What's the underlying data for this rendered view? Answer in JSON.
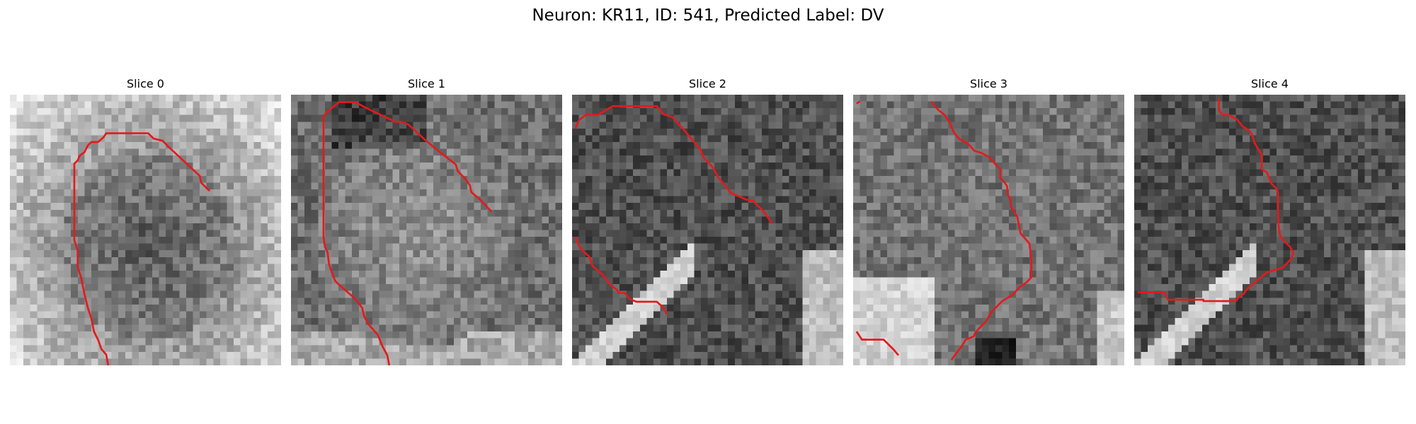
{
  "figure": {
    "title": "Neuron: KR11, ID: 541, Predicted Label: DV"
  },
  "panels": [
    {
      "title": "Slice 0",
      "background": "bright",
      "contours": [
        [
          [
            14.5,
            40
          ],
          [
            14.2,
            38.4
          ],
          [
            13.5,
            37.6
          ],
          [
            13,
            36.2
          ],
          [
            12.4,
            35
          ],
          [
            12,
            33
          ],
          [
            11.5,
            31.5
          ],
          [
            11,
            29.5
          ],
          [
            10.5,
            27
          ],
          [
            10,
            25.5
          ],
          [
            10,
            23
          ],
          [
            9.5,
            21.5
          ],
          [
            9.5,
            10.2
          ],
          [
            10,
            9.7
          ],
          [
            10.3,
            9
          ],
          [
            11,
            8.5
          ],
          [
            11.5,
            7.5
          ],
          [
            12,
            7
          ],
          [
            13,
            7
          ],
          [
            13.8,
            6.3
          ],
          [
            14.2,
            5.7
          ],
          [
            20.4,
            5.7
          ],
          [
            21.2,
            6.5
          ],
          [
            22.5,
            6.8
          ],
          [
            23.5,
            7.8
          ],
          [
            28,
            12
          ],
          [
            28.2,
            13
          ],
          [
            29.2,
            14
          ],
          [
            29.5,
            14.2
          ]
        ]
      ]
    },
    {
      "title": "Slice 1",
      "background": "mid",
      "contours": [
        [
          [
            14.5,
            40
          ],
          [
            14.2,
            38.5
          ],
          [
            13.5,
            37.2
          ],
          [
            12.8,
            35.5
          ],
          [
            11.5,
            34
          ],
          [
            10.8,
            32.8
          ],
          [
            10.5,
            31.5
          ],
          [
            9.5,
            30.2
          ],
          [
            7,
            28
          ],
          [
            6.5,
            27.5
          ],
          [
            6,
            26.2
          ],
          [
            5.6,
            25
          ],
          [
            5.4,
            23.3
          ],
          [
            5,
            22.5
          ],
          [
            4.8,
            21
          ],
          [
            4.8,
            3.2
          ],
          [
            5.2,
            2.7
          ],
          [
            6.2,
            1.8
          ],
          [
            7.1,
            1.1
          ],
          [
            9.5,
            1.1
          ],
          [
            10.6,
            1.7
          ],
          [
            11.8,
            2.3
          ],
          [
            13.9,
            3.3
          ],
          [
            15,
            3.8
          ],
          [
            15.2,
            4
          ],
          [
            16.2,
            4
          ],
          [
            17.3,
            4.4
          ],
          [
            18.3,
            5.3
          ],
          [
            19.8,
            6.7
          ],
          [
            21.6,
            8.2
          ],
          [
            24.3,
            10.3
          ],
          [
            24.6,
            11.3
          ],
          [
            25.6,
            12.3
          ],
          [
            26.4,
            13.4
          ],
          [
            26.6,
            14.4
          ],
          [
            27.8,
            15.4
          ],
          [
            29.6,
            17.3
          ]
        ]
      ]
    },
    {
      "title": "Slice 2",
      "background": "dark",
      "contours": [
        [
          [
            0.5,
            5
          ],
          [
            1,
            3.8
          ],
          [
            2,
            3
          ],
          [
            3.8,
            3
          ],
          [
            4.8,
            2.4
          ],
          [
            6,
            1.7
          ],
          [
            12.5,
            1.7
          ],
          [
            13.5,
            2.9
          ],
          [
            14.8,
            3.3
          ],
          [
            16.5,
            5.2
          ],
          [
            19,
            8.2
          ],
          [
            19.4,
            9.3
          ],
          [
            20.8,
            10.8
          ],
          [
            21.6,
            12.3
          ],
          [
            22.4,
            13.2
          ],
          [
            23.4,
            14.5
          ],
          [
            25.7,
            15.5
          ],
          [
            26.7,
            15.7
          ],
          [
            28.2,
            17.2
          ],
          [
            29.5,
            19
          ]
        ],
        [
          [
            0.5,
            21
          ],
          [
            1,
            22.3
          ],
          [
            1.5,
            23
          ],
          [
            2.6,
            24
          ],
          [
            3,
            25.3
          ],
          [
            4.5,
            26.6
          ],
          [
            5.6,
            28
          ],
          [
            6.8,
            29
          ],
          [
            6.8,
            29.3
          ],
          [
            7.8,
            29.3
          ],
          [
            8.5,
            30.2
          ],
          [
            9.5,
            30.6
          ],
          [
            12.5,
            30.6
          ],
          [
            13.5,
            31.5
          ],
          [
            14,
            32.5
          ]
        ]
      ]
    },
    {
      "title": "Slice 3",
      "background": "mid-dark",
      "contours": [
        [
          [
            0.5,
            1.3
          ],
          [
            1,
            1
          ]
        ],
        [
          [
            11.5,
            1
          ],
          [
            12.5,
            2.2
          ],
          [
            13.5,
            3
          ],
          [
            14.3,
            4.2
          ],
          [
            14.8,
            5.5
          ],
          [
            15.6,
            6.5
          ],
          [
            16.9,
            7.2
          ],
          [
            17.9,
            8.3
          ],
          [
            18.9,
            8.6
          ],
          [
            20,
            9.2
          ],
          [
            21.2,
            10.5
          ],
          [
            21.7,
            11
          ],
          [
            21.7,
            12.3
          ],
          [
            22.2,
            12.8
          ],
          [
            22.7,
            13.5
          ],
          [
            22.8,
            14.7
          ],
          [
            23.2,
            15.6
          ],
          [
            23.3,
            16.6
          ],
          [
            24.2,
            18
          ],
          [
            24.4,
            19
          ],
          [
            24.7,
            20.5
          ],
          [
            26,
            22
          ],
          [
            26.2,
            23.5
          ],
          [
            26.3,
            25.3
          ],
          [
            26.3,
            27
          ],
          [
            25.5,
            27.8
          ],
          [
            24.5,
            28.5
          ],
          [
            23.5,
            29.6
          ],
          [
            22,
            30.5
          ],
          [
            20.4,
            32.1
          ],
          [
            19.6,
            33.5
          ],
          [
            18.8,
            34.3
          ],
          [
            18,
            35.2
          ],
          [
            17.8,
            35.7
          ],
          [
            16.6,
            36.2
          ],
          [
            16,
            37.2
          ],
          [
            15,
            38.5
          ],
          [
            14.5,
            39.2
          ]
        ],
        [
          [
            0.5,
            35
          ],
          [
            1.3,
            36.2
          ],
          [
            4.5,
            36.2
          ],
          [
            5.5,
            37.2
          ],
          [
            6,
            37.7
          ],
          [
            6.5,
            38.3
          ],
          [
            6.7,
            38.5
          ]
        ]
      ]
    },
    {
      "title": "Slice 4",
      "background": "dark",
      "contours": [
        [
          [
            12.5,
            0.5
          ],
          [
            12.5,
            2.3
          ],
          [
            13,
            3
          ],
          [
            14,
            3
          ],
          [
            15.2,
            3.7
          ],
          [
            16,
            4.7
          ],
          [
            17,
            5.3
          ],
          [
            17.5,
            6.2
          ],
          [
            17.8,
            7.2
          ],
          [
            18.3,
            8.1
          ],
          [
            18.8,
            8.8
          ],
          [
            18.8,
            11
          ],
          [
            19.6,
            11.5
          ],
          [
            20.2,
            13.1
          ],
          [
            21,
            13.9
          ],
          [
            21.2,
            14.5
          ],
          [
            21.2,
            17
          ],
          [
            21.3,
            19.4
          ],
          [
            21.5,
            20.8
          ],
          [
            22.2,
            21.7
          ],
          [
            23,
            22.5
          ],
          [
            23.5,
            23.4
          ],
          [
            23.2,
            24.2
          ],
          [
            22,
            25.5
          ],
          [
            20.5,
            26
          ],
          [
            19.5,
            26.3
          ],
          [
            17,
            28.4
          ],
          [
            16.4,
            29
          ],
          [
            16.2,
            29.4
          ],
          [
            15.5,
            29.8
          ],
          [
            15,
            30.5
          ],
          [
            10.2,
            30.5
          ],
          [
            10.2,
            30.3
          ],
          [
            5,
            30.3
          ],
          [
            4.8,
            30
          ],
          [
            4.6,
            29.5
          ],
          [
            4.4,
            29.2
          ],
          [
            0.5,
            29.2
          ]
        ]
      ]
    }
  ]
}
